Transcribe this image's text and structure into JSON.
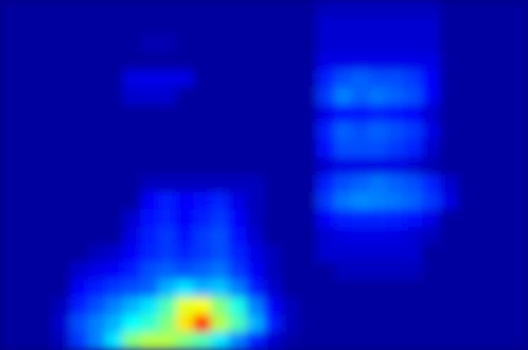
{
  "chart_data": {
    "type": "heatmap",
    "tick_labels": false,
    "zlim": [
      0,
      1
    ],
    "cells": [
      [
        0.03,
        0.03,
        0.03,
        0.03,
        0.03,
        0.03,
        0.03,
        0.03,
        0.03,
        0.03,
        0.03,
        0.03,
        0.03,
        0.03,
        0.03,
        0.03,
        0.03,
        0.03,
        0.06,
        0.06,
        0.06,
        0.06,
        0.06,
        0.06,
        0.06,
        0.03,
        0.03,
        0.03,
        0.03,
        0.03
      ],
      [
        0.03,
        0.03,
        0.03,
        0.03,
        0.03,
        0.03,
        0.03,
        0.03,
        0.03,
        0.03,
        0.03,
        0.03,
        0.03,
        0.03,
        0.03,
        0.03,
        0.03,
        0.03,
        0.08,
        0.08,
        0.08,
        0.08,
        0.08,
        0.08,
        0.08,
        0.03,
        0.03,
        0.03,
        0.03,
        0.03
      ],
      [
        0.03,
        0.03,
        0.03,
        0.03,
        0.03,
        0.03,
        0.03,
        0.03,
        0.05,
        0.05,
        0.03,
        0.03,
        0.03,
        0.03,
        0.03,
        0.03,
        0.03,
        0.03,
        0.08,
        0.08,
        0.08,
        0.08,
        0.08,
        0.08,
        0.08,
        0.03,
        0.03,
        0.03,
        0.03,
        0.03
      ],
      [
        0.03,
        0.03,
        0.03,
        0.03,
        0.03,
        0.03,
        0.03,
        0.03,
        0.03,
        0.03,
        0.03,
        0.03,
        0.03,
        0.03,
        0.03,
        0.03,
        0.03,
        0.03,
        0.1,
        0.1,
        0.1,
        0.1,
        0.1,
        0.1,
        0.1,
        0.03,
        0.03,
        0.03,
        0.03,
        0.03
      ],
      [
        0.03,
        0.03,
        0.03,
        0.03,
        0.03,
        0.03,
        0.03,
        0.1,
        0.1,
        0.1,
        0.1,
        0.03,
        0.03,
        0.03,
        0.03,
        0.03,
        0.03,
        0.03,
        0.15,
        0.2,
        0.22,
        0.2,
        0.2,
        0.18,
        0.12,
        0.03,
        0.03,
        0.03,
        0.03,
        0.03
      ],
      [
        0.03,
        0.03,
        0.03,
        0.03,
        0.03,
        0.03,
        0.03,
        0.08,
        0.08,
        0.08,
        0.03,
        0.03,
        0.03,
        0.03,
        0.03,
        0.03,
        0.03,
        0.03,
        0.18,
        0.25,
        0.22,
        0.24,
        0.22,
        0.2,
        0.12,
        0.03,
        0.03,
        0.03,
        0.03,
        0.03
      ],
      [
        0.03,
        0.03,
        0.03,
        0.03,
        0.03,
        0.03,
        0.03,
        0.03,
        0.03,
        0.03,
        0.03,
        0.03,
        0.03,
        0.03,
        0.03,
        0.03,
        0.03,
        0.03,
        0.1,
        0.14,
        0.14,
        0.15,
        0.14,
        0.12,
        0.08,
        0.03,
        0.03,
        0.03,
        0.03,
        0.03
      ],
      [
        0.03,
        0.03,
        0.03,
        0.03,
        0.03,
        0.03,
        0.03,
        0.03,
        0.03,
        0.03,
        0.03,
        0.03,
        0.03,
        0.03,
        0.03,
        0.03,
        0.03,
        0.03,
        0.15,
        0.22,
        0.2,
        0.22,
        0.2,
        0.18,
        0.1,
        0.03,
        0.03,
        0.03,
        0.03,
        0.03
      ],
      [
        0.03,
        0.03,
        0.03,
        0.03,
        0.03,
        0.03,
        0.03,
        0.03,
        0.03,
        0.03,
        0.03,
        0.03,
        0.03,
        0.03,
        0.03,
        0.03,
        0.03,
        0.03,
        0.14,
        0.2,
        0.2,
        0.2,
        0.18,
        0.16,
        0.08,
        0.03,
        0.03,
        0.03,
        0.03,
        0.03
      ],
      [
        0.03,
        0.03,
        0.03,
        0.03,
        0.03,
        0.03,
        0.03,
        0.03,
        0.03,
        0.03,
        0.03,
        0.03,
        0.03,
        0.03,
        0.03,
        0.03,
        0.03,
        0.03,
        0.08,
        0.1,
        0.1,
        0.1,
        0.1,
        0.08,
        0.05,
        0.03,
        0.03,
        0.03,
        0.03,
        0.03
      ],
      [
        0.03,
        0.03,
        0.03,
        0.03,
        0.03,
        0.03,
        0.03,
        0.03,
        0.06,
        0.06,
        0.06,
        0.06,
        0.06,
        0.06,
        0.06,
        0.03,
        0.03,
        0.03,
        0.15,
        0.2,
        0.22,
        0.24,
        0.22,
        0.2,
        0.16,
        0.08,
        0.03,
        0.03,
        0.03,
        0.03
      ],
      [
        0.03,
        0.03,
        0.03,
        0.03,
        0.03,
        0.03,
        0.03,
        0.03,
        0.12,
        0.15,
        0.12,
        0.14,
        0.16,
        0.1,
        0.06,
        0.03,
        0.03,
        0.03,
        0.18,
        0.24,
        0.26,
        0.25,
        0.24,
        0.22,
        0.18,
        0.1,
        0.03,
        0.03,
        0.03,
        0.03
      ],
      [
        0.03,
        0.03,
        0.03,
        0.03,
        0.03,
        0.03,
        0.03,
        0.08,
        0.14,
        0.16,
        0.12,
        0.15,
        0.18,
        0.12,
        0.06,
        0.03,
        0.03,
        0.03,
        0.12,
        0.15,
        0.16,
        0.16,
        0.15,
        0.14,
        0.1,
        0.03,
        0.03,
        0.03,
        0.03,
        0.03
      ],
      [
        0.03,
        0.03,
        0.03,
        0.03,
        0.03,
        0.03,
        0.03,
        0.1,
        0.15,
        0.18,
        0.14,
        0.18,
        0.2,
        0.14,
        0.08,
        0.03,
        0.03,
        0.03,
        0.08,
        0.1,
        0.1,
        0.1,
        0.1,
        0.08,
        0.06,
        0.03,
        0.03,
        0.03,
        0.03,
        0.03
      ],
      [
        0.03,
        0.03,
        0.03,
        0.03,
        0.03,
        0.06,
        0.08,
        0.12,
        0.16,
        0.18,
        0.16,
        0.18,
        0.2,
        0.16,
        0.1,
        0.06,
        0.03,
        0.03,
        0.08,
        0.08,
        0.08,
        0.08,
        0.08,
        0.08,
        0.03,
        0.03,
        0.03,
        0.03,
        0.03,
        0.03
      ],
      [
        0.03,
        0.03,
        0.03,
        0.03,
        0.08,
        0.1,
        0.12,
        0.15,
        0.2,
        0.22,
        0.2,
        0.22,
        0.24,
        0.18,
        0.12,
        0.06,
        0.03,
        0.03,
        0.03,
        0.06,
        0.06,
        0.06,
        0.06,
        0.06,
        0.03,
        0.03,
        0.03,
        0.03,
        0.03,
        0.03
      ],
      [
        0.03,
        0.03,
        0.03,
        0.03,
        0.12,
        0.15,
        0.18,
        0.2,
        0.22,
        0.3,
        0.35,
        0.3,
        0.32,
        0.25,
        0.15,
        0.08,
        0.03,
        0.03,
        0.03,
        0.03,
        0.03,
        0.03,
        0.03,
        0.03,
        0.03,
        0.03,
        0.03,
        0.03,
        0.03,
        0.03
      ],
      [
        0.03,
        0.03,
        0.03,
        0.06,
        0.15,
        0.2,
        0.25,
        0.3,
        0.35,
        0.45,
        0.6,
        0.62,
        0.5,
        0.4,
        0.25,
        0.12,
        0.06,
        0.03,
        0.03,
        0.03,
        0.03,
        0.03,
        0.03,
        0.03,
        0.03,
        0.03,
        0.03,
        0.03,
        0.03,
        0.03
      ],
      [
        0.03,
        0.03,
        0.03,
        0.08,
        0.2,
        0.25,
        0.3,
        0.38,
        0.42,
        0.5,
        0.65,
        0.85,
        0.55,
        0.45,
        0.3,
        0.15,
        0.06,
        0.03,
        0.03,
        0.03,
        0.03,
        0.03,
        0.03,
        0.03,
        0.03,
        0.03,
        0.03,
        0.03,
        0.03,
        0.03
      ],
      [
        0.03,
        0.03,
        0.03,
        0.06,
        0.18,
        0.25,
        0.35,
        0.5,
        0.55,
        0.55,
        0.5,
        0.45,
        0.35,
        0.25,
        0.15,
        0.08,
        0.04,
        0.03,
        0.03,
        0.03,
        0.03,
        0.03,
        0.03,
        0.03,
        0.03,
        0.03,
        0.03,
        0.03,
        0.03,
        0.03
      ]
    ]
  }
}
